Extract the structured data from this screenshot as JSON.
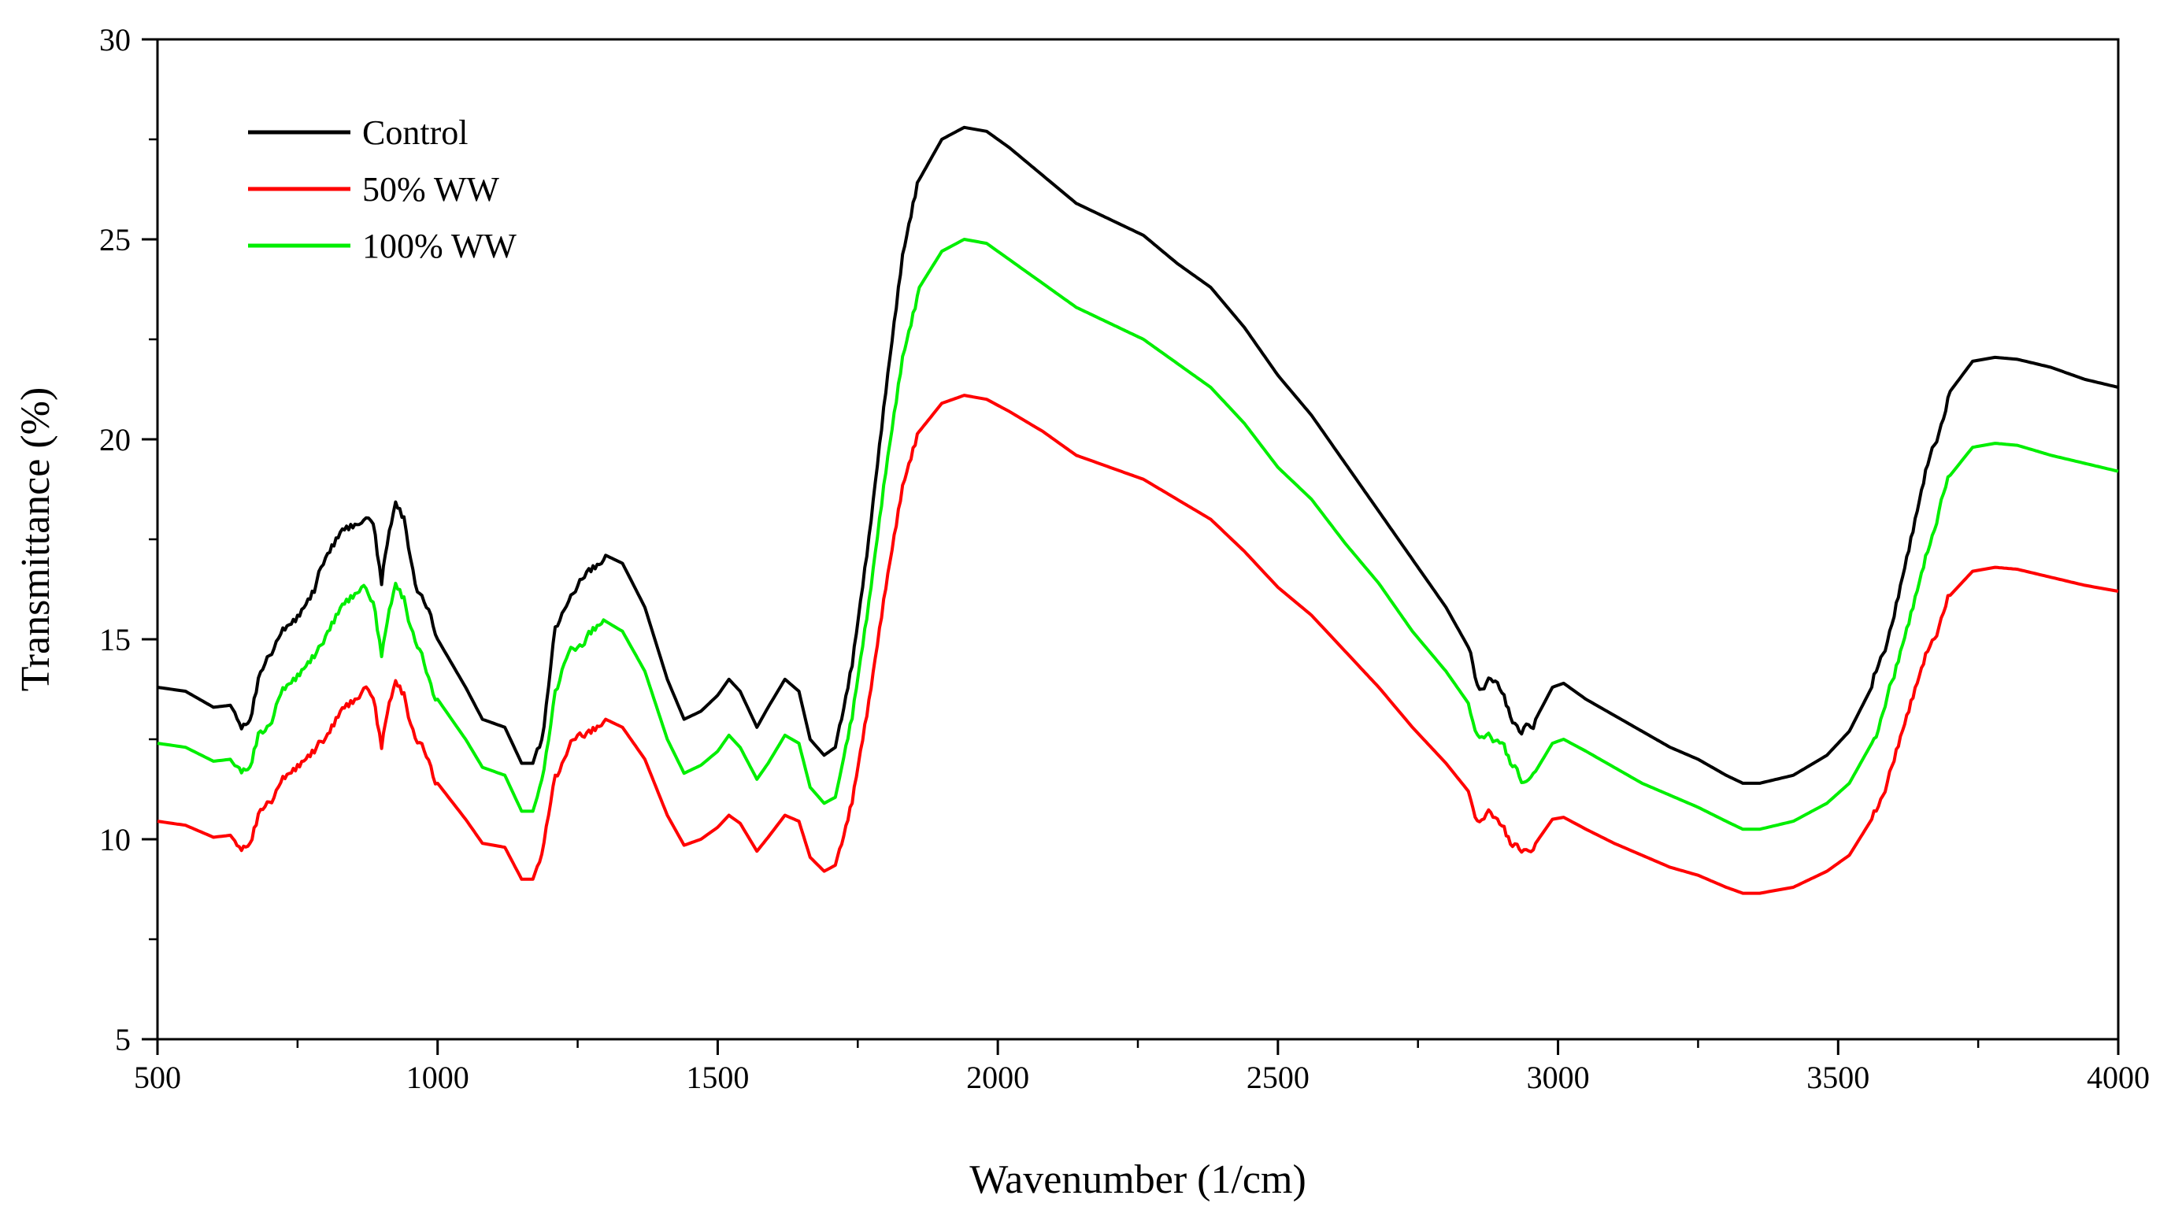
{
  "chart_data": {
    "type": "line",
    "title": "",
    "xlabel": "Wavenumber (1/cm)",
    "ylabel": "Transmittance (%)",
    "xlim": [
      500,
      4000
    ],
    "ylim": [
      5,
      30
    ],
    "xticks": [
      500,
      1000,
      1500,
      2000,
      2500,
      3000,
      3500,
      4000
    ],
    "xtick_labels": [
      "500",
      "1000",
      "1500",
      "2000",
      "2500",
      "3000",
      "3500",
      "4000"
    ],
    "yticks": [
      5,
      10,
      15,
      20,
      25,
      30
    ],
    "ytick_labels": [
      "5",
      "10",
      "15",
      "20",
      "25",
      "30"
    ],
    "grid": false,
    "legend_position": "top-left",
    "series": [
      {
        "name": "Control",
        "color": "#000000",
        "points": [
          [
            500,
            13.8
          ],
          [
            550,
            13.7
          ],
          [
            600,
            13.3
          ],
          [
            630,
            13.35
          ],
          [
            650,
            12.9
          ],
          [
            665,
            13.0
          ],
          [
            680,
            14.0
          ],
          [
            700,
            14.5
          ],
          [
            720,
            15.3
          ],
          [
            750,
            15.6
          ],
          [
            780,
            16.2
          ],
          [
            800,
            17.0
          ],
          [
            830,
            17.8
          ],
          [
            860,
            18.0
          ],
          [
            885,
            17.9
          ],
          [
            900,
            16.4
          ],
          [
            910,
            17.3
          ],
          [
            925,
            18.3
          ],
          [
            940,
            17.9
          ],
          [
            960,
            16.5
          ],
          [
            1000,
            15.0
          ],
          [
            1050,
            13.8
          ],
          [
            1080,
            13.0
          ],
          [
            1120,
            12.8
          ],
          [
            1150,
            11.9
          ],
          [
            1170,
            11.9
          ],
          [
            1190,
            12.8
          ],
          [
            1210,
            15.2
          ],
          [
            1230,
            16.0
          ],
          [
            1250,
            16.2
          ],
          [
            1270,
            16.8
          ],
          [
            1300,
            17.1
          ],
          [
            1330,
            16.9
          ],
          [
            1370,
            15.8
          ],
          [
            1410,
            14.0
          ],
          [
            1440,
            13.0
          ],
          [
            1470,
            13.2
          ],
          [
            1500,
            13.6
          ],
          [
            1520,
            14.0
          ],
          [
            1540,
            13.7
          ],
          [
            1570,
            12.8
          ],
          [
            1590,
            13.3
          ],
          [
            1620,
            14.0
          ],
          [
            1645,
            13.7
          ],
          [
            1665,
            12.5
          ],
          [
            1690,
            12.1
          ],
          [
            1710,
            12.3
          ],
          [
            1740,
            14.5
          ],
          [
            1770,
            17.6
          ],
          [
            1800,
            21.2
          ],
          [
            1830,
            24.5
          ],
          [
            1860,
            26.5
          ],
          [
            1900,
            27.5
          ],
          [
            1940,
            27.8
          ],
          [
            1980,
            27.7
          ],
          [
            2020,
            27.3
          ],
          [
            2080,
            26.6
          ],
          [
            2140,
            25.9
          ],
          [
            2200,
            25.5
          ],
          [
            2260,
            25.1
          ],
          [
            2320,
            24.4
          ],
          [
            2380,
            23.8
          ],
          [
            2440,
            22.8
          ],
          [
            2500,
            21.6
          ],
          [
            2560,
            20.6
          ],
          [
            2620,
            19.4
          ],
          [
            2680,
            18.2
          ],
          [
            2740,
            17.0
          ],
          [
            2800,
            15.8
          ],
          [
            2840,
            14.8
          ],
          [
            2860,
            13.8
          ],
          [
            2880,
            13.9
          ],
          [
            2900,
            13.8
          ],
          [
            2915,
            13.2
          ],
          [
            2935,
            12.6
          ],
          [
            2960,
            13.0
          ],
          [
            2990,
            13.8
          ],
          [
            3010,
            13.9
          ],
          [
            3050,
            13.5
          ],
          [
            3100,
            13.1
          ],
          [
            3150,
            12.7
          ],
          [
            3200,
            12.3
          ],
          [
            3250,
            12.0
          ],
          [
            3300,
            11.6
          ],
          [
            3330,
            11.4
          ],
          [
            3360,
            11.4
          ],
          [
            3420,
            11.6
          ],
          [
            3480,
            12.1
          ],
          [
            3520,
            12.7
          ],
          [
            3560,
            13.8
          ],
          [
            3600,
            15.6
          ],
          [
            3630,
            17.4
          ],
          [
            3660,
            19.3
          ],
          [
            3700,
            21.2
          ],
          [
            3740,
            21.95
          ],
          [
            3780,
            22.05
          ],
          [
            3820,
            22.0
          ],
          [
            3880,
            21.8
          ],
          [
            3940,
            21.5
          ],
          [
            4000,
            21.3
          ]
        ]
      },
      {
        "name": "50% WW",
        "color": "#ff0000",
        "points": [
          [
            500,
            10.45
          ],
          [
            550,
            10.35
          ],
          [
            600,
            10.05
          ],
          [
            630,
            10.1
          ],
          [
            650,
            9.75
          ],
          [
            665,
            9.8
          ],
          [
            680,
            10.5
          ],
          [
            700,
            10.95
          ],
          [
            720,
            11.5
          ],
          [
            750,
            11.75
          ],
          [
            780,
            12.1
          ],
          [
            800,
            12.6
          ],
          [
            830,
            13.4
          ],
          [
            860,
            13.65
          ],
          [
            885,
            13.65
          ],
          [
            900,
            12.4
          ],
          [
            910,
            13.1
          ],
          [
            925,
            13.9
          ],
          [
            940,
            13.6
          ],
          [
            960,
            12.6
          ],
          [
            1000,
            11.4
          ],
          [
            1050,
            10.5
          ],
          [
            1080,
            9.9
          ],
          [
            1120,
            9.8
          ],
          [
            1150,
            9.0
          ],
          [
            1170,
            9.0
          ],
          [
            1190,
            9.8
          ],
          [
            1210,
            11.6
          ],
          [
            1230,
            12.2
          ],
          [
            1250,
            12.5
          ],
          [
            1270,
            12.8
          ],
          [
            1300,
            13.0
          ],
          [
            1330,
            12.8
          ],
          [
            1370,
            12.0
          ],
          [
            1410,
            10.6
          ],
          [
            1440,
            9.85
          ],
          [
            1470,
            10.0
          ],
          [
            1500,
            10.3
          ],
          [
            1520,
            10.6
          ],
          [
            1540,
            10.4
          ],
          [
            1570,
            9.7
          ],
          [
            1590,
            10.05
          ],
          [
            1620,
            10.6
          ],
          [
            1645,
            10.45
          ],
          [
            1665,
            9.55
          ],
          [
            1690,
            9.2
          ],
          [
            1710,
            9.35
          ],
          [
            1740,
            11.0
          ],
          [
            1770,
            13.4
          ],
          [
            1800,
            16.2
          ],
          [
            1830,
            18.7
          ],
          [
            1860,
            20.2
          ],
          [
            1900,
            20.9
          ],
          [
            1940,
            21.1
          ],
          [
            1980,
            21.0
          ],
          [
            2020,
            20.7
          ],
          [
            2080,
            20.2
          ],
          [
            2140,
            19.6
          ],
          [
            2200,
            19.3
          ],
          [
            2260,
            19.0
          ],
          [
            2320,
            18.5
          ],
          [
            2380,
            18.0
          ],
          [
            2440,
            17.2
          ],
          [
            2500,
            16.3
          ],
          [
            2560,
            15.6
          ],
          [
            2620,
            14.7
          ],
          [
            2680,
            13.8
          ],
          [
            2740,
            12.8
          ],
          [
            2800,
            11.9
          ],
          [
            2840,
            11.2
          ],
          [
            2860,
            10.4
          ],
          [
            2880,
            10.6
          ],
          [
            2900,
            10.5
          ],
          [
            2915,
            10.0
          ],
          [
            2935,
            9.6
          ],
          [
            2960,
            9.9
          ],
          [
            2990,
            10.5
          ],
          [
            3010,
            10.55
          ],
          [
            3050,
            10.25
          ],
          [
            3100,
            9.9
          ],
          [
            3150,
            9.6
          ],
          [
            3200,
            9.3
          ],
          [
            3250,
            9.1
          ],
          [
            3300,
            8.8
          ],
          [
            3330,
            8.65
          ],
          [
            3360,
            8.65
          ],
          [
            3420,
            8.8
          ],
          [
            3480,
            9.2
          ],
          [
            3520,
            9.6
          ],
          [
            3560,
            10.5
          ],
          [
            3600,
            11.9
          ],
          [
            3630,
            13.3
          ],
          [
            3660,
            14.7
          ],
          [
            3700,
            16.1
          ],
          [
            3740,
            16.7
          ],
          [
            3780,
            16.8
          ],
          [
            3820,
            16.75
          ],
          [
            3880,
            16.55
          ],
          [
            3940,
            16.35
          ],
          [
            4000,
            16.2
          ]
        ]
      },
      {
        "name": "100% WW",
        "color": "#00ee00",
        "points": [
          [
            500,
            12.4
          ],
          [
            550,
            12.3
          ],
          [
            600,
            11.95
          ],
          [
            630,
            12.0
          ],
          [
            650,
            11.6
          ],
          [
            665,
            11.65
          ],
          [
            680,
            12.5
          ],
          [
            700,
            12.95
          ],
          [
            720,
            13.6
          ],
          [
            750,
            13.95
          ],
          [
            780,
            14.5
          ],
          [
            800,
            15.2
          ],
          [
            830,
            15.95
          ],
          [
            860,
            16.2
          ],
          [
            885,
            16.1
          ],
          [
            900,
            14.7
          ],
          [
            910,
            15.5
          ],
          [
            925,
            16.45
          ],
          [
            940,
            16.1
          ],
          [
            960,
            14.9
          ],
          [
            1000,
            13.5
          ],
          [
            1050,
            12.5
          ],
          [
            1080,
            11.8
          ],
          [
            1120,
            11.6
          ],
          [
            1150,
            10.7
          ],
          [
            1170,
            10.7
          ],
          [
            1190,
            11.6
          ],
          [
            1210,
            13.8
          ],
          [
            1230,
            14.5
          ],
          [
            1250,
            14.8
          ],
          [
            1270,
            15.2
          ],
          [
            1300,
            15.45
          ],
          [
            1330,
            15.2
          ],
          [
            1370,
            14.2
          ],
          [
            1410,
            12.5
          ],
          [
            1440,
            11.65
          ],
          [
            1470,
            11.85
          ],
          [
            1500,
            12.2
          ],
          [
            1520,
            12.6
          ],
          [
            1540,
            12.3
          ],
          [
            1570,
            11.5
          ],
          [
            1590,
            11.9
          ],
          [
            1620,
            12.6
          ],
          [
            1645,
            12.4
          ],
          [
            1665,
            11.3
          ],
          [
            1690,
            10.9
          ],
          [
            1710,
            11.05
          ],
          [
            1740,
            13.0
          ],
          [
            1770,
            15.8
          ],
          [
            1800,
            19.1
          ],
          [
            1830,
            22.0
          ],
          [
            1860,
            23.8
          ],
          [
            1900,
            24.7
          ],
          [
            1940,
            25.0
          ],
          [
            1980,
            24.9
          ],
          [
            2020,
            24.5
          ],
          [
            2080,
            23.9
          ],
          [
            2140,
            23.3
          ],
          [
            2200,
            22.9
          ],
          [
            2260,
            22.5
          ],
          [
            2320,
            21.9
          ],
          [
            2380,
            21.3
          ],
          [
            2440,
            20.4
          ],
          [
            2500,
            19.3
          ],
          [
            2560,
            18.5
          ],
          [
            2620,
            17.4
          ],
          [
            2680,
            16.4
          ],
          [
            2740,
            15.2
          ],
          [
            2800,
            14.2
          ],
          [
            2840,
            13.4
          ],
          [
            2860,
            12.4
          ],
          [
            2880,
            12.6
          ],
          [
            2900,
            12.5
          ],
          [
            2915,
            11.9
          ],
          [
            2935,
            11.4
          ],
          [
            2960,
            11.7
          ],
          [
            2990,
            12.4
          ],
          [
            3010,
            12.5
          ],
          [
            3050,
            12.2
          ],
          [
            3100,
            11.8
          ],
          [
            3150,
            11.4
          ],
          [
            3200,
            11.1
          ],
          [
            3250,
            10.8
          ],
          [
            3300,
            10.45
          ],
          [
            3330,
            10.25
          ],
          [
            3360,
            10.25
          ],
          [
            3420,
            10.45
          ],
          [
            3480,
            10.9
          ],
          [
            3520,
            11.4
          ],
          [
            3560,
            12.4
          ],
          [
            3600,
            14.0
          ],
          [
            3630,
            15.6
          ],
          [
            3660,
            17.3
          ],
          [
            3700,
            19.1
          ],
          [
            3740,
            19.8
          ],
          [
            3780,
            19.9
          ],
          [
            3820,
            19.85
          ],
          [
            3880,
            19.6
          ],
          [
            3940,
            19.4
          ],
          [
            4000,
            19.2
          ]
        ]
      }
    ]
  }
}
